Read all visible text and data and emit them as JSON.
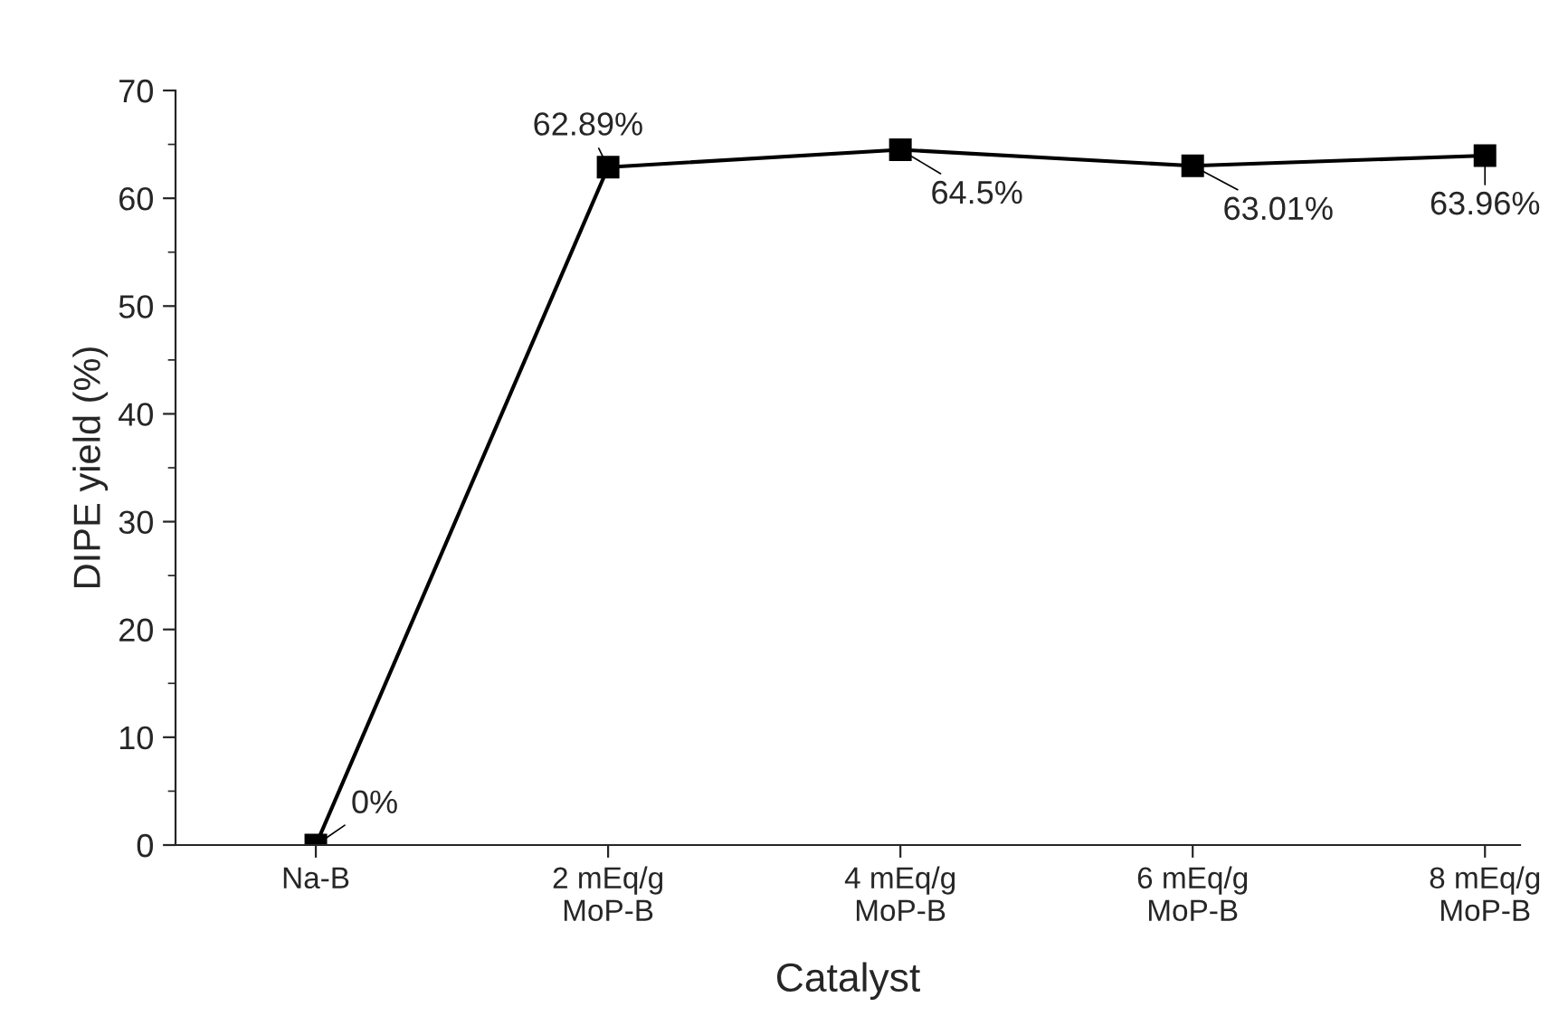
{
  "chart_data": {
    "type": "line",
    "xlabel": "Catalyst",
    "ylabel": "DIPE yield (%)",
    "categories": [
      "Na-B",
      "2 mEq/g\nMoP-B",
      "4 mEq/g\nMoP-B",
      "6 mEq/g\nMoP-B",
      "8 mEq/g\nMoP-B"
    ],
    "series": [
      {
        "color": "#000000",
        "values": [
          0,
          62.89,
          64.5,
          63.01,
          63.96
        ],
        "value_labels": [
          "0%",
          "62.89%",
          "64.5%",
          "63.01%",
          "63.96%"
        ]
      }
    ],
    "ylim": [
      0,
      70
    ],
    "yticks": [
      0,
      10,
      20,
      30,
      40,
      50,
      60,
      70
    ],
    "marker": "square",
    "line_style": "solid",
    "grid": false,
    "legend": false
  }
}
